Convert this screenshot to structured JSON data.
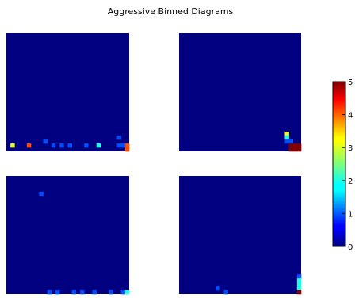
{
  "chart_data": {
    "type": "heatmap",
    "title": "Aggressive Binned Diagrams",
    "grid_size": 30,
    "background_value": 0,
    "colormap": "jet",
    "panels": [
      {
        "name": "",
        "cells": [
          {
            "row": 26,
            "col": 27,
            "value": 1
          },
          {
            "row": 27,
            "col": 9,
            "value": 1
          },
          {
            "row": 28,
            "col": 27,
            "value": 1
          },
          {
            "row": 28,
            "col": 28,
            "value": 1
          },
          {
            "row": 28,
            "col": 29,
            "value": 4
          },
          {
            "row": 29,
            "col": 29,
            "value": 4
          },
          {
            "row": 28,
            "col": 1,
            "value": 3
          },
          {
            "row": 28,
            "col": 5,
            "value": 4
          },
          {
            "row": 28,
            "col": 11,
            "value": 1
          },
          {
            "row": 28,
            "col": 13,
            "value": 1
          },
          {
            "row": 28,
            "col": 15,
            "value": 1
          },
          {
            "row": 28,
            "col": 19,
            "value": 1
          },
          {
            "row": 28,
            "col": 22,
            "value": 2
          }
        ]
      },
      {
        "name": "",
        "cells": [
          {
            "row": 25,
            "col": 26,
            "value": 3
          },
          {
            "row": 26,
            "col": 26,
            "value": 2
          },
          {
            "row": 27,
            "col": 26,
            "value": 1
          },
          {
            "row": 27,
            "col": 27,
            "value": 1
          },
          {
            "row": 28,
            "col": 27,
            "value": 5
          },
          {
            "row": 28,
            "col": 28,
            "value": 5
          },
          {
            "row": 28,
            "col": 29,
            "value": 5
          },
          {
            "row": 29,
            "col": 27,
            "value": 5
          },
          {
            "row": 29,
            "col": 28,
            "value": 5
          },
          {
            "row": 29,
            "col": 29,
            "value": 5
          }
        ]
      },
      {
        "name": "",
        "cells": [
          {
            "row": 4,
            "col": 8,
            "value": 1
          },
          {
            "row": 29,
            "col": 10,
            "value": 1
          },
          {
            "row": 29,
            "col": 12,
            "value": 1
          },
          {
            "row": 29,
            "col": 16,
            "value": 1
          },
          {
            "row": 29,
            "col": 18,
            "value": 1
          },
          {
            "row": 29,
            "col": 21,
            "value": 1
          },
          {
            "row": 29,
            "col": 25,
            "value": 1
          },
          {
            "row": 29,
            "col": 28,
            "value": 1
          },
          {
            "row": 29,
            "col": 29,
            "value": 2
          }
        ]
      },
      {
        "name": "",
        "cells": [
          {
            "row": 25,
            "col": 29,
            "value": 1
          },
          {
            "row": 26,
            "col": 29,
            "value": 2
          },
          {
            "row": 27,
            "col": 29,
            "value": 2
          },
          {
            "row": 28,
            "col": 9,
            "value": 1
          },
          {
            "row": 28,
            "col": 29,
            "value": 2
          },
          {
            "row": 29,
            "col": 11,
            "value": 1
          },
          {
            "row": 29,
            "col": 29,
            "value": 5
          }
        ]
      }
    ],
    "colorbar": {
      "range": [
        0,
        5
      ],
      "ticks": [
        "0",
        "1",
        "2",
        "3",
        "4",
        "5"
      ]
    }
  }
}
